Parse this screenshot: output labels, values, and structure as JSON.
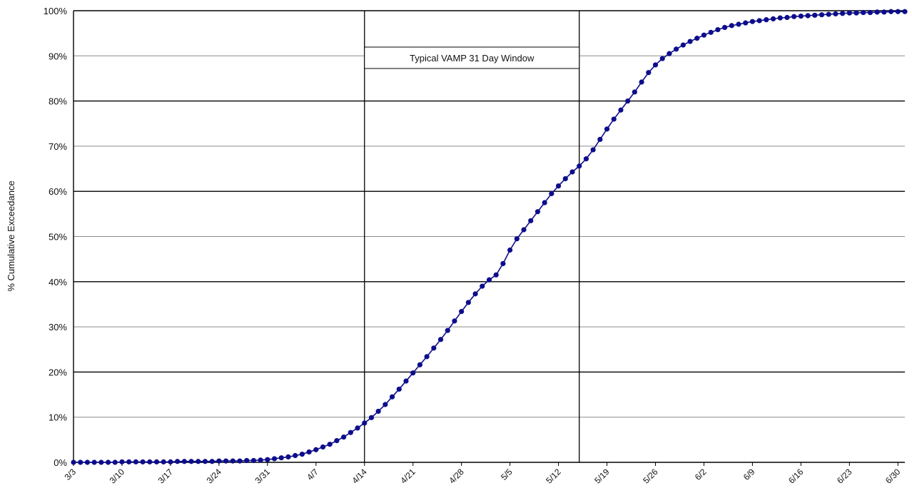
{
  "chart_data": {
    "type": "line",
    "title": "",
    "xlabel": "",
    "ylabel": "% Cumulative Exceedance",
    "ylim": [
      0,
      100
    ],
    "x_range_days": [
      0,
      120
    ],
    "y_ticks": [
      "0%",
      "10%",
      "20%",
      "30%",
      "40%",
      "50%",
      "60%",
      "70%",
      "80%",
      "90%",
      "100%"
    ],
    "x_ticks": [
      {
        "label": "3/3",
        "x": 0
      },
      {
        "label": "3/10",
        "x": 7
      },
      {
        "label": "3/17",
        "x": 14
      },
      {
        "label": "3/24",
        "x": 21
      },
      {
        "label": "3/31",
        "x": 28
      },
      {
        "label": "4/7",
        "x": 35
      },
      {
        "label": "4/14",
        "x": 42
      },
      {
        "label": "4/21",
        "x": 49
      },
      {
        "label": "4/28",
        "x": 56
      },
      {
        "label": "5/5",
        "x": 63
      },
      {
        "label": "5/12",
        "x": 70
      },
      {
        "label": "5/19",
        "x": 77
      },
      {
        "label": "5/26",
        "x": 84
      },
      {
        "label": "6/2",
        "x": 91
      },
      {
        "label": "6/9",
        "x": 98
      },
      {
        "label": "6/16",
        "x": 105
      },
      {
        "label": "6/23",
        "x": 112
      },
      {
        "label": "6/30",
        "x": 119
      }
    ],
    "grid": true,
    "series_color": "#0d0d8c",
    "annotation": {
      "text": "Typical VAMP 31 Day Window",
      "x_start": 42,
      "x_end": 73
    },
    "series": [
      {
        "x": [
          0,
          1,
          2,
          3,
          4,
          5,
          6,
          7,
          8,
          9,
          10,
          11,
          12,
          13,
          14,
          15,
          16,
          17,
          18,
          19,
          20,
          21,
          22,
          23,
          24,
          25,
          26,
          27,
          28,
          29,
          30,
          31,
          32,
          33,
          34,
          35,
          36,
          37,
          38,
          39,
          40,
          41,
          42,
          43,
          44,
          45,
          46,
          47,
          48,
          49,
          50,
          51,
          52,
          53,
          54,
          55,
          56,
          57,
          58,
          59,
          60,
          61,
          62,
          63,
          64,
          65,
          66,
          67,
          68,
          69,
          70,
          71,
          72,
          73,
          74,
          75,
          76,
          77,
          78,
          79,
          80,
          81,
          82,
          83,
          84,
          85,
          86,
          87,
          88,
          89,
          90,
          91,
          92,
          93,
          94,
          95,
          96,
          97,
          98,
          99,
          100,
          101,
          102,
          103,
          104,
          105,
          106,
          107,
          108,
          109,
          110,
          111,
          112,
          113,
          114,
          115,
          116,
          117,
          118,
          119,
          120
        ],
        "y": [
          0,
          0,
          0,
          0,
          0,
          0,
          0,
          0.1,
          0.1,
          0.1,
          0.1,
          0.1,
          0.1,
          0.1,
          0.1,
          0.2,
          0.2,
          0.2,
          0.2,
          0.2,
          0.2,
          0.3,
          0.3,
          0.3,
          0.3,
          0.4,
          0.4,
          0.5,
          0.6,
          0.8,
          1.0,
          1.2,
          1.5,
          1.8,
          2.3,
          2.8,
          3.4,
          4.0,
          4.8,
          5.6,
          6.6,
          7.6,
          8.7,
          9.9,
          11.3,
          12.8,
          14.5,
          16.2,
          18.0,
          19.8,
          21.6,
          23.4,
          25.3,
          27.2,
          29.2,
          31.3,
          33.4,
          35.4,
          37.3,
          39.0,
          40.4,
          41.5,
          44.0,
          47.0,
          49.5,
          51.5,
          53.5,
          55.5,
          57.5,
          59.5,
          61.2,
          62.8,
          64.3,
          65.6,
          67.2,
          69.2,
          71.5,
          73.8,
          76.0,
          78.0,
          80.0,
          82.0,
          84.2,
          86.3,
          88.0,
          89.4,
          90.5,
          91.5,
          92.4,
          93.2,
          93.9,
          94.6,
          95.2,
          95.8,
          96.3,
          96.7,
          97.0,
          97.3,
          97.6,
          97.8,
          98.0,
          98.2,
          98.4,
          98.5,
          98.7,
          98.8,
          98.9,
          99.0,
          99.1,
          99.2,
          99.3,
          99.4,
          99.5,
          99.5,
          99.6,
          99.6,
          99.7,
          99.7,
          99.8,
          99.8,
          99.8
        ]
      }
    ]
  }
}
